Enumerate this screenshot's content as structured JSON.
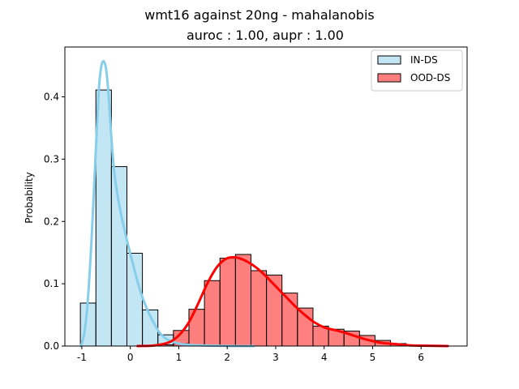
{
  "chart_data": {
    "type": "histogram",
    "title": "wmt16 against 20ng  - mahalanobis",
    "subtitle": "auroc : 1.00, aupr : 1.00",
    "xlabel": "",
    "ylabel": "Probability",
    "xlim": [
      -1.35,
      6.95
    ],
    "ylim": [
      0,
      0.48
    ],
    "xticks": [
      -1,
      0,
      1,
      2,
      3,
      4,
      5,
      6
    ],
    "yticks": [
      0.0,
      0.1,
      0.2,
      0.3,
      0.4
    ],
    "legend_position": "top-right",
    "grid": false,
    "series": [
      {
        "name": "IN-DS",
        "fill_color": "#87ceeb",
        "fill_opacity": 0.5,
        "line_color": "#87ceeb",
        "bins": [
          {
            "x0": -1.03,
            "x1": -0.71,
            "y": 0.069
          },
          {
            "x0": -0.71,
            "x1": -0.39,
            "y": 0.411
          },
          {
            "x0": -0.39,
            "x1": -0.07,
            "y": 0.288
          },
          {
            "x0": -0.07,
            "x1": 0.25,
            "y": 0.149
          },
          {
            "x0": 0.25,
            "x1": 0.57,
            "y": 0.058
          },
          {
            "x0": 0.57,
            "x1": 0.89,
            "y": 0.018
          },
          {
            "x0": 0.89,
            "x1": 1.21,
            "y": 0.004
          }
        ],
        "kde": {
          "x": [
            -1.02,
            -0.95,
            -0.88,
            -0.8,
            -0.72,
            -0.65,
            -0.6,
            -0.55,
            -0.5,
            -0.45,
            -0.4,
            -0.35,
            -0.3,
            -0.2,
            -0.1,
            0.0,
            0.1,
            0.2,
            0.3,
            0.4,
            0.5,
            0.6,
            0.7,
            0.8,
            1.0,
            1.2,
            1.5,
            2.0,
            2.55
          ],
          "y": [
            0.0,
            0.02,
            0.07,
            0.17,
            0.3,
            0.41,
            0.448,
            0.457,
            0.445,
            0.405,
            0.345,
            0.295,
            0.26,
            0.215,
            0.18,
            0.148,
            0.118,
            0.09,
            0.068,
            0.05,
            0.035,
            0.022,
            0.014,
            0.009,
            0.004,
            0.002,
            0.001,
            0.0002,
            0.0
          ]
        }
      },
      {
        "name": "OOD-DS",
        "fill_color": "#ff0000",
        "fill_opacity": 0.5,
        "line_color": "#ff0000",
        "bins": [
          {
            "x0": 0.57,
            "x1": 0.89,
            "y": 0.002
          },
          {
            "x0": 0.89,
            "x1": 1.21,
            "y": 0.025
          },
          {
            "x0": 1.21,
            "x1": 1.53,
            "y": 0.059
          },
          {
            "x0": 1.53,
            "x1": 1.85,
            "y": 0.105
          },
          {
            "x0": 1.85,
            "x1": 2.17,
            "y": 0.141
          },
          {
            "x0": 2.17,
            "x1": 2.49,
            "y": 0.147
          },
          {
            "x0": 2.49,
            "x1": 2.81,
            "y": 0.121
          },
          {
            "x0": 2.81,
            "x1": 3.13,
            "y": 0.114
          },
          {
            "x0": 3.13,
            "x1": 3.45,
            "y": 0.085
          },
          {
            "x0": 3.45,
            "x1": 3.77,
            "y": 0.061
          },
          {
            "x0": 3.77,
            "x1": 4.09,
            "y": 0.032
          },
          {
            "x0": 4.09,
            "x1": 4.41,
            "y": 0.027
          },
          {
            "x0": 4.41,
            "x1": 4.73,
            "y": 0.024
          },
          {
            "x0": 4.73,
            "x1": 5.05,
            "y": 0.017
          },
          {
            "x0": 5.05,
            "x1": 5.37,
            "y": 0.009
          },
          {
            "x0": 5.37,
            "x1": 5.69,
            "y": 0.004
          },
          {
            "x0": 5.69,
            "x1": 6.01,
            "y": 0.002
          },
          {
            "x0": 6.01,
            "x1": 6.33,
            "y": 0.001
          }
        ],
        "kde": {
          "x": [
            0.15,
            0.5,
            0.8,
            1.0,
            1.2,
            1.4,
            1.6,
            1.8,
            2.0,
            2.2,
            2.4,
            2.6,
            2.8,
            3.0,
            3.2,
            3.4,
            3.6,
            3.8,
            4.0,
            4.2,
            4.4,
            4.6,
            4.8,
            5.0,
            5.2,
            5.5,
            5.8,
            6.1,
            6.55
          ],
          "y": [
            0.0,
            0.001,
            0.006,
            0.017,
            0.037,
            0.068,
            0.102,
            0.128,
            0.141,
            0.142,
            0.136,
            0.126,
            0.112,
            0.096,
            0.08,
            0.064,
            0.05,
            0.038,
            0.03,
            0.026,
            0.022,
            0.017,
            0.012,
            0.008,
            0.005,
            0.003,
            0.001,
            0.0005,
            0.0
          ]
        }
      }
    ]
  }
}
